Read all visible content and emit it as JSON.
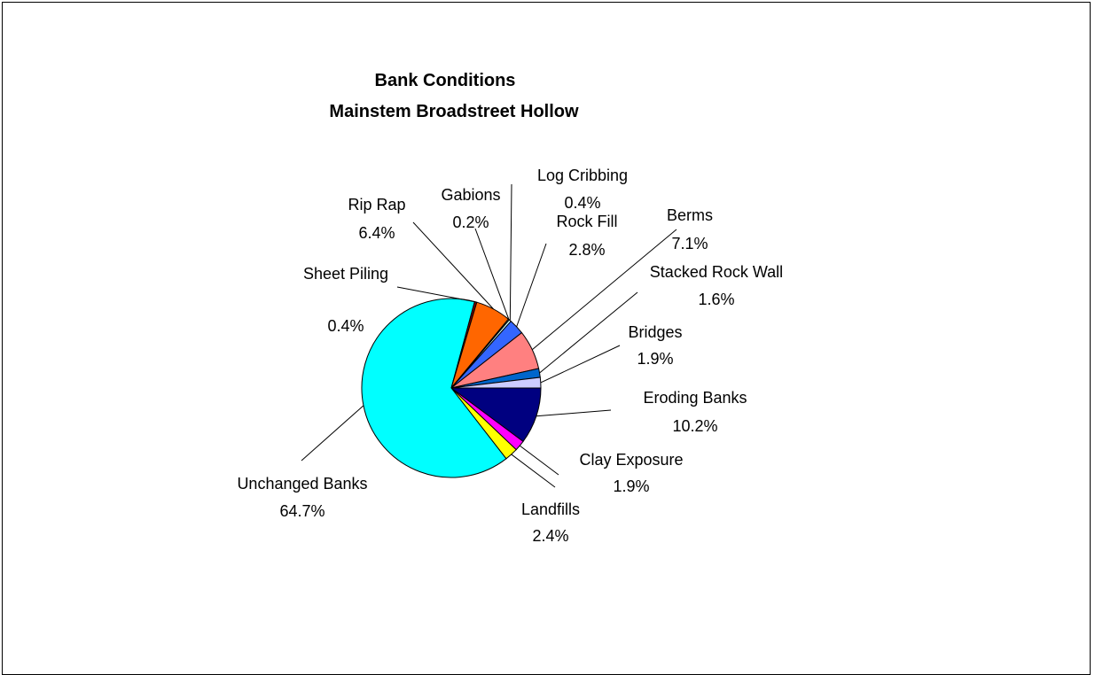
{
  "chart_data": {
    "type": "pie",
    "title_lines": [
      "Bank Conditions",
      "Mainstem Broadstreet Hollow"
    ],
    "slices": [
      {
        "name": "Eroding Banks",
        "value": 10.2,
        "label": "10.2%",
        "color": "#000080"
      },
      {
        "name": "Clay Exposure",
        "value": 1.9,
        "label": "1.9%",
        "color": "#FF00FF"
      },
      {
        "name": "Landfills",
        "value": 2.4,
        "label": "2.4%",
        "color": "#FFFF00"
      },
      {
        "name": "Unchanged Banks",
        "value": 64.7,
        "label": "64.7%",
        "color": "#00FFFF"
      },
      {
        "name": "Sheet Piling",
        "value": 0.4,
        "label": "0.4%",
        "color": "#800000"
      },
      {
        "name": "Rip Rap",
        "value": 6.4,
        "label": "6.4%",
        "color": "#FF6600"
      },
      {
        "name": "Gabions",
        "value": 0.2,
        "label": "0.2%",
        "color": "#FFFFCC"
      },
      {
        "name": "Log Cribbing",
        "value": 0.4,
        "label": "0.4%",
        "color": "#CCFFFF"
      },
      {
        "name": "Rock Fill",
        "value": 2.8,
        "label": "2.8%",
        "color": "#3366FF"
      },
      {
        "name": "Berms",
        "value": 7.1,
        "label": "7.1%",
        "color": "#FF8080"
      },
      {
        "name": "Stacked Rock Wall",
        "value": 1.6,
        "label": "1.6%",
        "color": "#0066CC"
      },
      {
        "name": "Bridges",
        "value": 1.9,
        "label": "1.9%",
        "color": "#CCCCFF"
      }
    ],
    "legend": "none",
    "start_angle": "3 o'clock, clockwise"
  }
}
